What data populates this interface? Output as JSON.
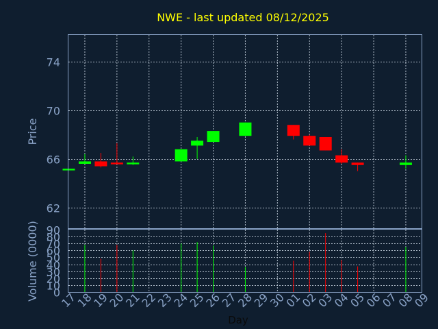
{
  "chart_data": {
    "type": "candlestick",
    "title": "NWE - last updated 08/12/2025",
    "xlabel": "Day",
    "price_ylabel": "Price",
    "volume_ylabel": "Volume (0000)",
    "price_ylim": [
      60.3,
      76.2
    ],
    "price_ticks": [
      62,
      66,
      70,
      74
    ],
    "volume_ylim": [
      0,
      90
    ],
    "volume_ticks": [
      0,
      10,
      20,
      30,
      40,
      50,
      60,
      70,
      80,
      90
    ],
    "x_tick_labels": [
      "17",
      "18",
      "19",
      "20",
      "21",
      "22",
      "23",
      "24",
      "25",
      "26",
      "27",
      "28",
      "29",
      "30",
      "01",
      "02",
      "03",
      "04",
      "05",
      "06",
      "07",
      "08",
      "09"
    ],
    "grid": true,
    "colors": {
      "up": "#00ff00",
      "down": "#ff0000",
      "background": "#0f1e2f",
      "title": "#ffff00",
      "axis": "#8aa3c7"
    },
    "candles": [
      {
        "day": "17",
        "open": 65.2,
        "high": 65.2,
        "low": 65.2,
        "close": 65.2,
        "volume": 0
      },
      {
        "day": "18",
        "open": 65.6,
        "high": 66.4,
        "low": 65.6,
        "close": 65.8,
        "volume": 68
      },
      {
        "day": "19",
        "open": 65.8,
        "high": 66.5,
        "low": 65.3,
        "close": 65.4,
        "volume": 48
      },
      {
        "day": "20",
        "open": 65.7,
        "high": 67.3,
        "low": 65.6,
        "close": 65.6,
        "volume": 68
      },
      {
        "day": "21",
        "open": 65.6,
        "high": 66.2,
        "low": 65.5,
        "close": 65.7,
        "volume": 60
      },
      {
        "day": "24",
        "open": 65.8,
        "high": 66.8,
        "low": 65.8,
        "close": 66.8,
        "volume": 70
      },
      {
        "day": "25",
        "open": 67.1,
        "high": 67.8,
        "low": 66.0,
        "close": 67.5,
        "volume": 72
      },
      {
        "day": "26",
        "open": 67.4,
        "high": 68.3,
        "low": 67.4,
        "close": 68.3,
        "volume": 67
      },
      {
        "day": "28",
        "open": 67.9,
        "high": 69.0,
        "low": 67.9,
        "close": 69.0,
        "volume": 36
      },
      {
        "day": "01",
        "open": 68.8,
        "high": 68.8,
        "low": 67.6,
        "close": 67.9,
        "volume": 45
      },
      {
        "day": "02",
        "open": 67.9,
        "high": 68.0,
        "low": 67.1,
        "close": 67.1,
        "volume": 58
      },
      {
        "day": "03",
        "open": 67.8,
        "high": 67.8,
        "low": 66.7,
        "close": 66.7,
        "volume": 85
      },
      {
        "day": "04",
        "open": 66.3,
        "high": 66.8,
        "low": 65.6,
        "close": 65.7,
        "volume": 46
      },
      {
        "day": "05",
        "open": 65.7,
        "high": 65.7,
        "low": 65.0,
        "close": 65.5,
        "volume": 37
      },
      {
        "day": "08",
        "open": 65.5,
        "high": 66.3,
        "low": 65.2,
        "close": 65.7,
        "volume": 65
      }
    ]
  }
}
